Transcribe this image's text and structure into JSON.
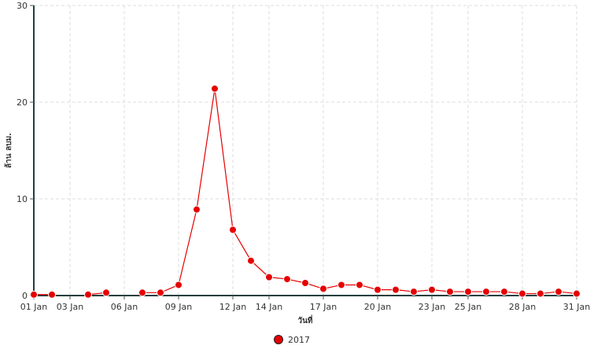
{
  "chart_data": {
    "type": "line",
    "xlabel": "วันที่",
    "ylabel": "ล้าน ลบม.",
    "x_range": [
      "2017-01-01",
      "2017-01-31"
    ],
    "ylim": [
      0,
      30
    ],
    "grid": true,
    "legend_position": "bottom-center",
    "x_ticks": [
      {
        "date": "2017-01-01",
        "label": "01 Jan"
      },
      {
        "date": "2017-01-03",
        "label": "03 Jan"
      },
      {
        "date": "2017-01-06",
        "label": "06 Jan"
      },
      {
        "date": "2017-01-09",
        "label": "09 Jan"
      },
      {
        "date": "2017-01-12",
        "label": "12 Jan"
      },
      {
        "date": "2017-01-14",
        "label": "14 Jan"
      },
      {
        "date": "2017-01-17",
        "label": "17 Jan"
      },
      {
        "date": "2017-01-20",
        "label": "20 Jan"
      },
      {
        "date": "2017-01-23",
        "label": "23 Jan"
      },
      {
        "date": "2017-01-25",
        "label": "25 Jan"
      },
      {
        "date": "2017-01-28",
        "label": "28 Jan"
      },
      {
        "date": "2017-01-31",
        "label": "31 Jan"
      }
    ],
    "y_ticks": [
      {
        "value": 0,
        "label": "0"
      },
      {
        "value": 10,
        "label": "10"
      },
      {
        "value": 20,
        "label": "20"
      },
      {
        "value": 30,
        "label": "30"
      }
    ],
    "series": [
      {
        "name": "2017",
        "color": "#e60000",
        "segments": [
          [
            {
              "x": "2017-01-01",
              "y": 0.1
            },
            {
              "x": "2017-01-02",
              "y": 0.1
            }
          ],
          [
            {
              "x": "2017-01-04",
              "y": 0.1
            },
            {
              "x": "2017-01-05",
              "y": 0.3
            }
          ],
          [
            {
              "x": "2017-01-07",
              "y": 0.3
            },
            {
              "x": "2017-01-08",
              "y": 0.3
            },
            {
              "x": "2017-01-09",
              "y": 1.1
            },
            {
              "x": "2017-01-10",
              "y": 8.9
            },
            {
              "x": "2017-01-11",
              "y": 21.4
            },
            {
              "x": "2017-01-12",
              "y": 6.8
            },
            {
              "x": "2017-01-13",
              "y": 3.6
            },
            {
              "x": "2017-01-14",
              "y": 1.9
            },
            {
              "x": "2017-01-15",
              "y": 1.7
            },
            {
              "x": "2017-01-16",
              "y": 1.3
            },
            {
              "x": "2017-01-17",
              "y": 0.7
            },
            {
              "x": "2017-01-18",
              "y": 1.1
            },
            {
              "x": "2017-01-19",
              "y": 1.1
            },
            {
              "x": "2017-01-20",
              "y": 0.6
            },
            {
              "x": "2017-01-21",
              "y": 0.6
            },
            {
              "x": "2017-01-22",
              "y": 0.4
            },
            {
              "x": "2017-01-23",
              "y": 0.6
            },
            {
              "x": "2017-01-24",
              "y": 0.4
            },
            {
              "x": "2017-01-25",
              "y": 0.4
            },
            {
              "x": "2017-01-26",
              "y": 0.4
            },
            {
              "x": "2017-01-27",
              "y": 0.4
            },
            {
              "x": "2017-01-28",
              "y": 0.2
            },
            {
              "x": "2017-01-29",
              "y": 0.2
            },
            {
              "x": "2017-01-30",
              "y": 0.4
            },
            {
              "x": "2017-01-31",
              "y": 0.2
            }
          ]
        ]
      }
    ]
  }
}
